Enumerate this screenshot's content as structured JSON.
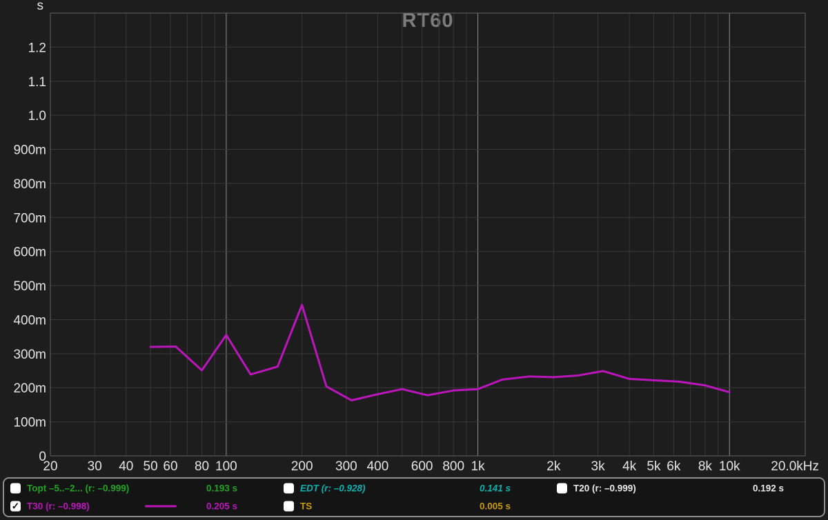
{
  "window": {
    "title": "RT60"
  },
  "chart_data": {
    "type": "line",
    "title": "RT60",
    "y_unit": "s",
    "x_scale": "log",
    "grid": true,
    "xlim": [
      20,
      20000
    ],
    "ylim": [
      0,
      1.3
    ],
    "y_ticks": [
      {
        "v": 0.0,
        "label": "0"
      },
      {
        "v": 0.1,
        "label": "100m"
      },
      {
        "v": 0.2,
        "label": "200m"
      },
      {
        "v": 0.3,
        "label": "300m"
      },
      {
        "v": 0.4,
        "label": "400m"
      },
      {
        "v": 0.5,
        "label": "500m"
      },
      {
        "v": 0.6,
        "label": "600m"
      },
      {
        "v": 0.7,
        "label": "700m"
      },
      {
        "v": 0.8,
        "label": "800m"
      },
      {
        "v": 0.9,
        "label": "900m"
      },
      {
        "v": 1.0,
        "label": "1.0"
      },
      {
        "v": 1.1,
        "label": "1.1"
      },
      {
        "v": 1.2,
        "label": "1.2"
      }
    ],
    "x_ticks": [
      {
        "f": 20,
        "label": "20"
      },
      {
        "f": 30,
        "label": "30"
      },
      {
        "f": 40,
        "label": "40"
      },
      {
        "f": 50,
        "label": "50"
      },
      {
        "f": 60,
        "label": "60"
      },
      {
        "f": 80,
        "label": "80"
      },
      {
        "f": 100,
        "label": "100"
      },
      {
        "f": 200,
        "label": "200"
      },
      {
        "f": 300,
        "label": "300"
      },
      {
        "f": 400,
        "label": "400"
      },
      {
        "f": 600,
        "label": "600"
      },
      {
        "f": 800,
        "label": "800"
      },
      {
        "f": 1000,
        "label": "1k"
      },
      {
        "f": 2000,
        "label": "2k"
      },
      {
        "f": 3000,
        "label": "3k"
      },
      {
        "f": 4000,
        "label": "4k"
      },
      {
        "f": 5000,
        "label": "5k"
      },
      {
        "f": 6000,
        "label": "6k"
      },
      {
        "f": 8000,
        "label": "8k"
      },
      {
        "f": 10000,
        "label": "10k"
      },
      {
        "f": 20000,
        "label": "20.0kHz",
        "align": "right"
      }
    ],
    "series": [
      {
        "name": "T30",
        "color": "#bb16bb",
        "x": [
          50,
          63,
          80,
          100,
          125,
          160,
          200,
          250,
          315,
          400,
          500,
          630,
          800,
          1000,
          1250,
          1600,
          2000,
          2500,
          3150,
          4000,
          5000,
          6300,
          8000,
          10000
        ],
        "values": [
          0.32,
          0.321,
          0.251,
          0.355,
          0.239,
          0.262,
          0.443,
          0.204,
          0.163,
          0.181,
          0.196,
          0.178,
          0.192,
          0.196,
          0.224,
          0.233,
          0.231,
          0.236,
          0.249,
          0.226,
          0.222,
          0.218,
          0.207,
          0.187
        ]
      }
    ]
  },
  "legend": {
    "items": [
      {
        "label": "Topt –5..–2... (r: –0.999)",
        "value": "0.193 s",
        "color": "#21a421",
        "checked": false,
        "italic": false,
        "line_sample": false
      },
      {
        "label": "T30 (r: –0.998)",
        "value": "0.205 s",
        "color": "#bb16bb",
        "checked": true,
        "italic": false,
        "line_sample": true
      },
      {
        "label": "EDT (r: –0.928)",
        "value": "0.141 s",
        "color": "#0ab2b2",
        "checked": false,
        "italic": true,
        "line_sample": false
      },
      {
        "label": "TS",
        "value": "0.005 s",
        "color": "#c99b05",
        "checked": false,
        "italic": false,
        "line_sample": false
      },
      {
        "label": "T20 (r: –0.999)",
        "value": "0.192 s",
        "color": "#eaeaea",
        "checked": false,
        "italic": false,
        "line_sample": false
      }
    ]
  },
  "colors": {
    "background": "#1d1d1d",
    "grid_minor": "#383838",
    "grid_major": "#8f8f8f",
    "plot_border": "#646464",
    "tick_label": "#e4e4e4",
    "title": "#7c7c7c",
    "legend_border": "#8f8f8f",
    "legend_bg": "#141414"
  }
}
